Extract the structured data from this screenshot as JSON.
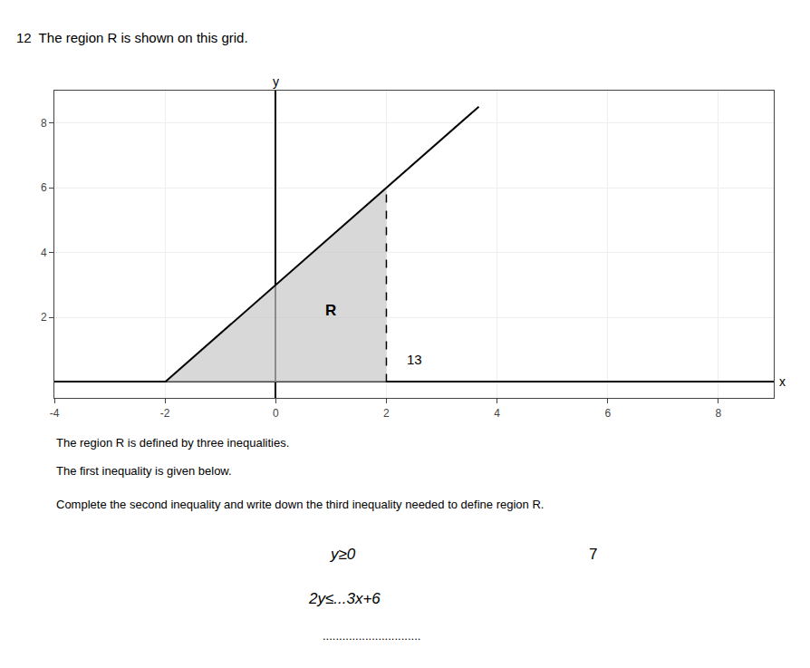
{
  "chart_data": {
    "type": "line",
    "title": "12  The region R is shown on this grid.",
    "xlabel": "x",
    "ylabel": "y",
    "series": [
      {
        "type": "area",
        "x": [
          -2,
          2,
          2
        ],
        "values": [
          0,
          6,
          0
        ],
        "color": "#c8c8c8"
      },
      {
        "type": "line",
        "x": [
          -2.0,
          3.67
        ],
        "values": [
          0,
          8.505
        ],
        "color": "#000000",
        "line_style": "solid"
      },
      {
        "type": "line",
        "x": [
          2,
          2
        ],
        "values": [
          0,
          6
        ],
        "color": "#000000",
        "line_style": "dashed"
      }
    ],
    "xlim": [
      -4,
      9
    ],
    "ylim": [
      -0.5,
      9
    ],
    "xticks": [
      -4,
      -2,
      0,
      2,
      4,
      6,
      8
    ],
    "yticks": [
      2,
      4,
      6,
      8
    ],
    "grid": true,
    "annotations": [
      {
        "text": "R",
        "x": 1.0,
        "y": 2.2
      },
      {
        "text": "13"
      },
      {
        "text": "The region R is defined by three inequalities."
      },
      {
        "text": "The first inequality is given below."
      },
      {
        "text": "Complete the second inequality and write down the third inequality needed to define region R."
      },
      {
        "text": "y≥0"
      },
      {
        "text": "7"
      },
      {
        "text": "2y≤...3x+6"
      },
      {
        "text": ".............................."
      }
    ]
  }
}
